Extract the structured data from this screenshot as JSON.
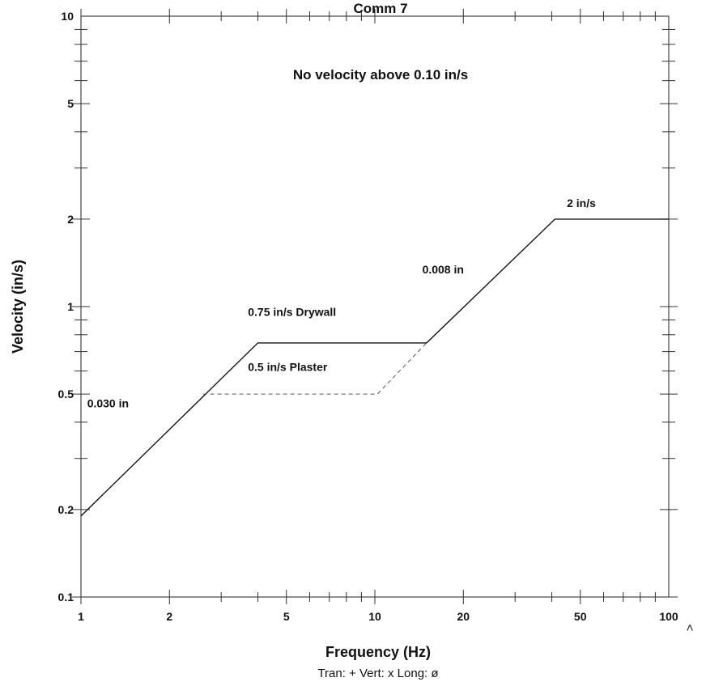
{
  "chart_data": {
    "type": "line",
    "title": "Comm 7",
    "note": "No velocity above 0.10 in/s",
    "xlabel": "Frequency (Hz)",
    "ylabel": "Velocity (in/s)",
    "x_scale": "log",
    "y_scale": "log",
    "xlim": [
      1,
      100
    ],
    "ylim": [
      0.1,
      10
    ],
    "x_ticks": [
      1,
      2,
      5,
      10,
      20,
      50,
      100
    ],
    "x_tick_labels": [
      "1",
      "2",
      "5",
      "10",
      "20",
      "50",
      "100"
    ],
    "y_ticks": [
      0.1,
      0.2,
      0.5,
      1,
      2,
      5,
      10
    ],
    "y_tick_labels": [
      "0.1",
      "0.2",
      "0.5",
      "1",
      "2",
      "5",
      "10"
    ],
    "grid": false,
    "legend_text": "Tran: +  Vert: x  Long: ø",
    "corner_mark": ">",
    "series": [
      {
        "style": "solid",
        "x": [
          1,
          4.0,
          15.0,
          41.0,
          100
        ],
        "y": [
          0.19,
          0.75,
          0.75,
          2.0,
          2.0
        ]
      },
      {
        "style": "dashed",
        "x": [
          2.6,
          10.2,
          15.0
        ],
        "y": [
          0.5,
          0.5,
          0.75
        ]
      }
    ],
    "annotations": [
      {
        "text": "0.030 in",
        "x": 1.05,
        "y": 0.45
      },
      {
        "text": "0.75 in/s Drywall",
        "x": 3.7,
        "y": 0.93
      },
      {
        "text": "0.5 in/s Plaster",
        "x": 3.7,
        "y": 0.6
      },
      {
        "text": "0.008 in",
        "x": 14.5,
        "y": 1.3
      },
      {
        "text": "2 in/s",
        "x": 45,
        "y": 2.2
      }
    ]
  }
}
